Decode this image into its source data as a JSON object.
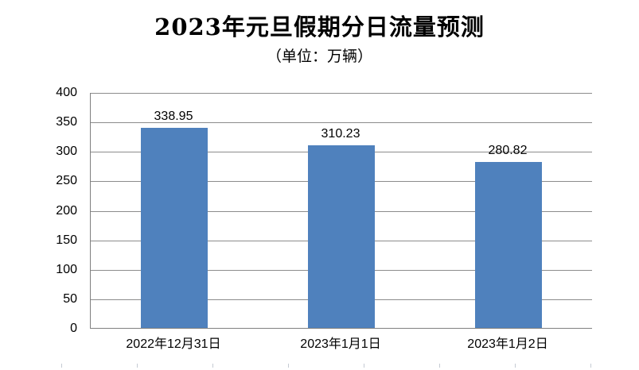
{
  "chart_data": {
    "type": "bar",
    "title": "2023年元旦假期分日流量预测",
    "subtitle": "（单位：万辆）",
    "categories": [
      "2022年12月31日",
      "2023年1月1日",
      "2023年1月2日"
    ],
    "values": [
      338.95,
      310.23,
      280.82
    ],
    "data_labels": [
      "338.95",
      "310.23",
      "280.82"
    ],
    "xlabel": "",
    "ylabel": "",
    "ylim": [
      0,
      400
    ],
    "yticks": [
      0,
      50,
      100,
      150,
      200,
      250,
      300,
      350,
      400
    ],
    "grid": true,
    "legend": "none",
    "colors": {
      "bar": "#4F81BD",
      "gridline": "#8C8C8C",
      "axis": "#7F7F7F",
      "text": "#000000",
      "background": "#FFFFFF"
    }
  }
}
